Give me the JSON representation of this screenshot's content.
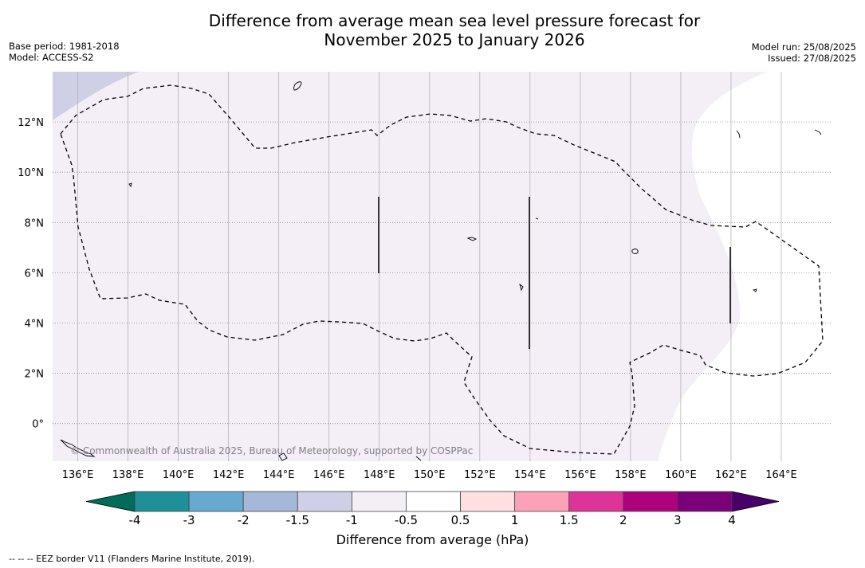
{
  "title_line1": "Difference from average mean sea level pressure forecast for",
  "title_line2": "November 2025 to January 2026",
  "base_period": "Base period: 1981-2018",
  "model": "Model: ACCESS-S2",
  "model_run": "Model run: 25/08/2025",
  "issued": "Issued: 27/08/2025",
  "copyright": "© Commonwealth of Australia 2025, Bureau of Meteorology, supported by COSPPac",
  "footnote": "--  --  -- EEZ border V11 (Flanders Marine Institute, 2019).",
  "map": {
    "lon_ticks": [
      "136°E",
      "138°E",
      "140°E",
      "142°E",
      "144°E",
      "146°E",
      "148°E",
      "150°E",
      "152°E",
      "154°E",
      "156°E",
      "158°E",
      "160°E",
      "162°E",
      "164°E"
    ],
    "lat_ticks": [
      "12°N",
      "10°N",
      "8°N",
      "6°N",
      "4°N",
      "2°N",
      "0°"
    ],
    "lon_range": [
      135,
      166
    ],
    "lat_range": [
      -1.5,
      14
    ],
    "grid": true
  },
  "colorbar": {
    "title": "Difference from average (hPa)",
    "tick_labels": [
      "-4",
      "-3",
      "-2",
      "-1.5",
      "-1",
      "-0.5",
      "0.5",
      "1",
      "1.5",
      "2",
      "3",
      "4"
    ],
    "colors": [
      "#1f9097",
      "#67a9cf",
      "#a6b8d8",
      "#cfd0e6",
      "#f4eef6",
      "#ffffff",
      "#fee0e0",
      "#fba2b8",
      "#dd3497",
      "#ae017e",
      "#7a0177"
    ],
    "under_color": "#016c59",
    "over_color": "#49006a"
  },
  "shading": {
    "light_negative_color": "#f4eef6",
    "mid_negative_color": "#cfd0e6"
  }
}
